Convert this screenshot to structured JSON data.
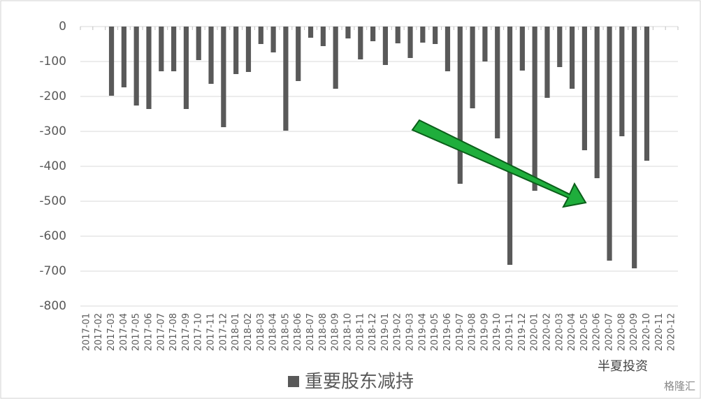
{
  "chart_data": {
    "type": "bar",
    "categories": [
      "2017-01",
      "2017-02",
      "2017-03",
      "2017-04",
      "2017-05",
      "2017-06",
      "2017-07",
      "2017-08",
      "2017-09",
      "2017-10",
      "2017-11",
      "2017-12",
      "2018-01",
      "2018-02",
      "2018-03",
      "2018-04",
      "2018-05",
      "2018-06",
      "2018-07",
      "2018-08",
      "2018-09",
      "2018-10",
      "2018-11",
      "2018-12",
      "2019-01",
      "2019-02",
      "2019-03",
      "2019-04",
      "2019-05",
      "2019-06",
      "2019-07",
      "2019-08",
      "2019-09",
      "2019-10",
      "2019-11",
      "2019-12",
      "2020-01",
      "2020-02",
      "2020-03",
      "2020-04",
      "2020-05",
      "2020-06",
      "2020-07",
      "2020-08",
      "2020-09",
      "2020-10",
      "2020-11",
      "2020-12"
    ],
    "series": [
      {
        "name": "重要股东减持",
        "color": "#595959",
        "values": [
          null,
          null,
          -198,
          -174,
          -226,
          -236,
          -128,
          -128,
          -236,
          -96,
          -164,
          -288,
          -136,
          -130,
          -50,
          -74,
          -298,
          -156,
          -32,
          -56,
          -178,
          -34,
          -94,
          -42,
          -110,
          -48,
          -90,
          -46,
          -50,
          -128,
          -450,
          -234,
          -100,
          -320,
          -682,
          -126,
          -470,
          -204,
          -116,
          -178,
          -354,
          -434,
          -670,
          -314,
          -692,
          -384,
          null,
          null
        ]
      }
    ],
    "ylim": [
      -800,
      0
    ],
    "yticks": [
      0,
      -100,
      -200,
      -300,
      -400,
      -500,
      -600,
      -700,
      -800
    ],
    "grid": true,
    "legend": "bottom",
    "watermarks": [
      "半夏投资",
      "格隆汇"
    ]
  }
}
